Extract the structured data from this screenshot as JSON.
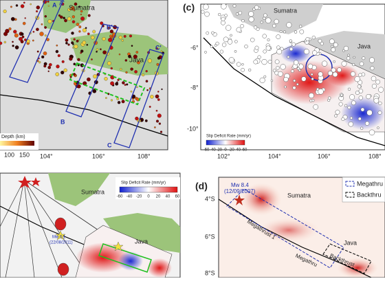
{
  "panel_a": {
    "sumatra": "Sumatra",
    "java": "Java",
    "profiles": [
      "A",
      "A'",
      "B",
      "B'",
      "C",
      "C'"
    ],
    "depth_label": "Depth (km)",
    "depth_ticks": [
      "100",
      "150"
    ],
    "lon_ticks": [
      "104°",
      "106°",
      "108°"
    ]
  },
  "panel_c": {
    "tag": "(c)",
    "sumatra": "Sumatra",
    "java": "Java",
    "lat_ticks": [
      "-6°",
      "-8°",
      "-10°"
    ],
    "colorbar_title": "Slip Deficit Rate (mm/yr)",
    "colorbar_ticks": [
      "-60",
      "-40",
      "-20",
      "0",
      "20",
      "40",
      "60"
    ],
    "lon_ticks": [
      "102°",
      "104°",
      "106°",
      "108°"
    ]
  },
  "panel_b": {
    "sumatra": "Sumatra",
    "java": "Java",
    "colorbar_title": "Slip Deficit Rate (mm/yr)",
    "colorbar_ticks": [
      "-60",
      "-40",
      "-20",
      "0",
      "20",
      "40",
      "60"
    ],
    "event_mw": "Mw 6.1",
    "event_date": "(22/08/2011)"
  },
  "panel_d": {
    "tag": "(d)",
    "event_mw": "Mw 8.4",
    "event_date": "(12/09/2007)",
    "sumatra": "Sumatra",
    "java": "Java",
    "legend": [
      "Megathru",
      "Backthru"
    ],
    "lat_ticks": [
      "4°S",
      "6°S",
      "8°S"
    ],
    "fault_labels": [
      "Megathrust 1",
      "Megathru",
      "Backthrust"
    ]
  }
}
